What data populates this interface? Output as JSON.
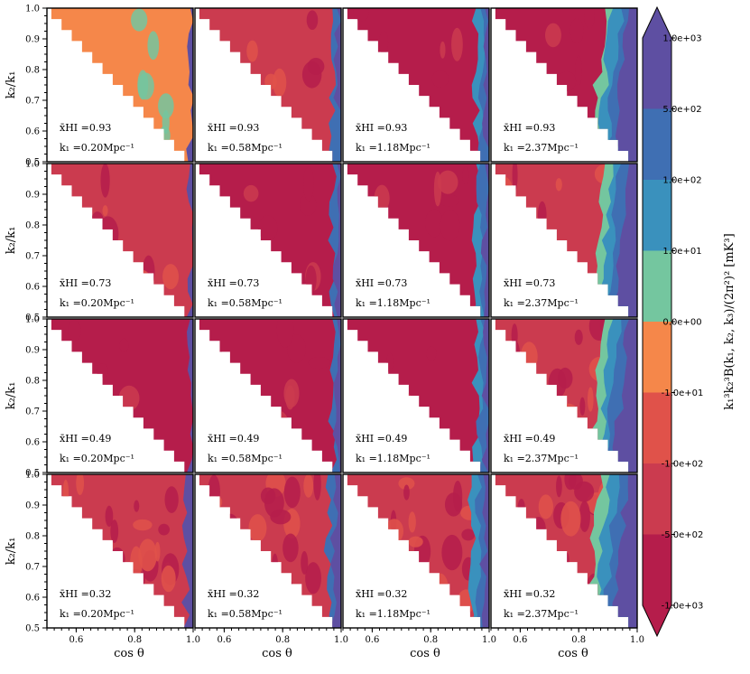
{
  "chart_data": {
    "type": "heatmap",
    "description_axes": {
      "xlabel": "cos θ",
      "ylabel": "k₂/k₁",
      "xlim": [
        0.5,
        1.0
      ],
      "ylim": [
        0.5,
        1.0
      ],
      "xticks": [
        "0.6",
        "0.8",
        "1.0"
      ],
      "yticks": [
        "0.5",
        "0.6",
        "0.7",
        "0.8",
        "0.9",
        "1.0"
      ]
    },
    "rows": [
      {
        "xHI_label": "x̄HI =0.93"
      },
      {
        "xHI_label": "x̄HI =0.73"
      },
      {
        "xHI_label": "x̄HI =0.49"
      },
      {
        "xHI_label": "x̄HI =0.32"
      }
    ],
    "columns": [
      {
        "k1_label": "k₁ =0.20Mpc⁻¹"
      },
      {
        "k1_label": "k₁ =0.58Mpc⁻¹"
      },
      {
        "k1_label": "k₁ =1.18Mpc⁻¹"
      },
      {
        "k1_label": "k₁ =2.37Mpc⁻¹"
      }
    ],
    "colorbar": {
      "label": "k₁³k₂³B(k₁, k₂, k₃)/(2π²)² [mK³]",
      "levels": [
        "1.0e+03",
        "5.0e+02",
        "1.0e+02",
        "1.0e+01",
        "0.0e+00",
        "-1.0e+01",
        "-1.0e+02",
        "-5.0e+02",
        "-1.0e+03"
      ],
      "colors": [
        "#5e4fa2",
        "#3f6fb3",
        "#3a91bd",
        "#74c69f",
        "#f5874a",
        "#e0524a",
        "#cb3b4f",
        "#b51d4b"
      ],
      "extend": "both"
    },
    "panel_base_levels": [
      [
        "0.0e+00",
        "-1.0e+02",
        "-5.0e+02",
        "-5.0e+02"
      ],
      [
        "-1.0e+02",
        "-5.0e+02",
        "-5.0e+02",
        "-1.0e+02"
      ],
      [
        "-5.0e+02",
        "-5.0e+02",
        "-5.0e+02",
        "-1.0e+02"
      ],
      [
        "-1.0e+02",
        "-1.0e+02",
        "-1.0e+02",
        "-1.0e+02"
      ]
    ]
  }
}
